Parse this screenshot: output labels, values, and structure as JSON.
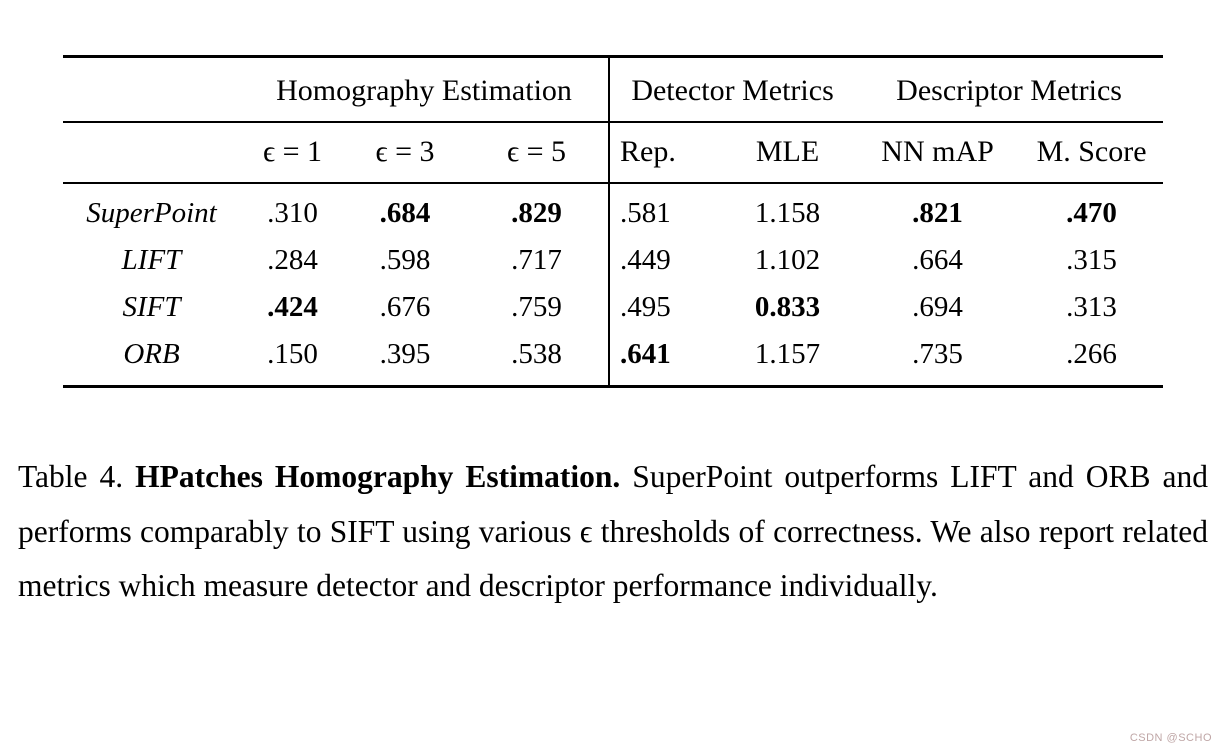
{
  "page": {
    "background": "#ffffff",
    "text_color": "#000000"
  },
  "table": {
    "col_groups": [
      {
        "label": "Homography Estimation",
        "span": 3
      },
      {
        "label": "Detector Metrics",
        "span": 2
      },
      {
        "label": "Descriptor Metrics",
        "span": 2
      }
    ],
    "columns": [
      "ϵ = 1",
      "ϵ = 3",
      "ϵ = 5",
      "Rep.",
      "MLE",
      "NN mAP",
      "M. Score"
    ],
    "rows": [
      {
        "name": "SuperPoint",
        "values": [
          ".310",
          ".684",
          ".829",
          ".581",
          "1.158",
          ".821",
          ".470"
        ],
        "bold": [
          false,
          true,
          true,
          false,
          false,
          true,
          true
        ]
      },
      {
        "name": "LIFT",
        "values": [
          ".284",
          ".598",
          ".717",
          ".449",
          "1.102",
          ".664",
          ".315"
        ],
        "bold": [
          false,
          false,
          false,
          false,
          false,
          false,
          false
        ]
      },
      {
        "name": "SIFT",
        "values": [
          ".424",
          ".676",
          ".759",
          ".495",
          "0.833",
          ".694",
          ".313"
        ],
        "bold": [
          true,
          false,
          false,
          false,
          true,
          false,
          false
        ]
      },
      {
        "name": "ORB",
        "values": [
          ".150",
          ".395",
          ".538",
          ".641",
          "1.157",
          ".735",
          ".266"
        ],
        "bold": [
          false,
          false,
          false,
          true,
          false,
          false,
          false
        ]
      }
    ]
  },
  "caption": {
    "prefix": "Table 4. ",
    "title": "HPatches Homography Estimation.",
    "body": "  SuperPoint outperforms LIFT and ORB and performs comparably to SIFT using various ϵ thresholds of correctness. We also report related metrics which measure detector and descriptor performance individually."
  },
  "watermark": "CSDN @SCHO"
}
